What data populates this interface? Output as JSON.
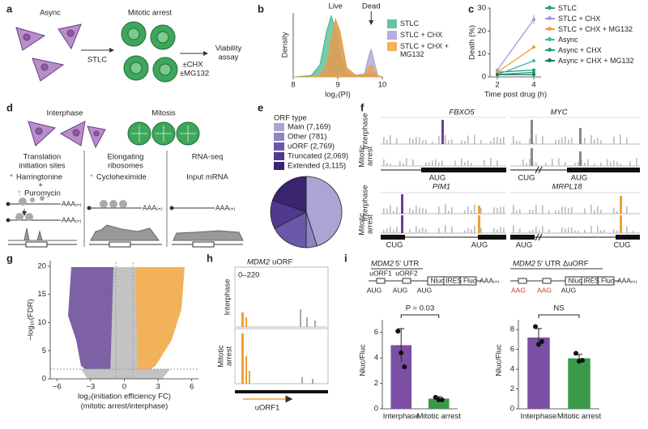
{
  "panel_labels": [
    "a",
    "b",
    "c",
    "d",
    "e",
    "f",
    "g",
    "h",
    "i"
  ],
  "panel_a": {
    "async": "Async",
    "drug": "STLC",
    "arrest": "Mitotic arrest",
    "treatments": [
      "±CHX",
      "±MG132"
    ],
    "assay": [
      "Viability",
      "assay"
    ]
  },
  "panel_d": {
    "interphase": "Interphase",
    "mitosis": "Mitosis",
    "columns": [
      [
        "Translation",
        "initiation sites"
      ],
      [
        "Elongating",
        "ribosomes"
      ],
      [
        "RNA-seq"
      ]
    ],
    "treatments": [
      "Harringtonine",
      "+",
      "Puromycin",
      "Cycloheximide",
      "Input mRNA"
    ],
    "markers": [
      "*",
      "†",
      "*"
    ],
    "polya": "AAA₍ₙ₎"
  },
  "panel_f": {
    "genes": [
      "FBXO5",
      "MYC",
      "PIM1",
      "MRPL18"
    ],
    "rows": [
      "Interphase",
      [
        "Mitotic",
        "arrest"
      ]
    ],
    "codons": [
      "AUG",
      "CUG"
    ]
  },
  "panel_h": {
    "gene": "MDM2",
    "feature": "uORF",
    "range": "0–220",
    "rows": [
      "Interphase",
      [
        "Mitotic",
        "arrest"
      ]
    ],
    "orf": "uORF1"
  },
  "panel_i": {
    "constructs": [
      {
        "gene": "MDM2",
        "title": "5′ UTR",
        "orfs": [
          "uORF1",
          "uORF2"
        ],
        "codons": [
          "AUG",
          "AUG",
          "AUG"
        ],
        "elements": [
          "Nluc",
          "IRES",
          "Fluc"
        ],
        "polya": "AAA₍ₙ₎"
      },
      {
        "gene": "MDM2",
        "title": "5′ UTR ΔuORF",
        "codons": [
          "AAG",
          "AAG",
          "AUG"
        ],
        "elements": [
          "Nluc",
          "IRES",
          "Fluc"
        ],
        "polya": "AAA₍ₙ₎"
      }
    ]
  },
  "chart_data": [
    {
      "type": "density",
      "xlabel": "log₂(PI)",
      "ylabel": "Density",
      "annotations": [
        "Live",
        "Dead"
      ],
      "x": [
        8.0,
        8.4,
        8.6,
        8.75,
        8.85,
        8.95,
        9.05,
        9.2,
        9.4,
        9.6,
        9.7,
        9.75,
        9.8,
        9.9,
        10.0
      ],
      "series": [
        {
          "name": "STLC",
          "color": "#3fb58a",
          "values": [
            0,
            0.02,
            0.2,
            0.75,
            1.0,
            0.8,
            0.35,
            0.05,
            0.01,
            0.02,
            0.05,
            0.05,
            0.03,
            0,
            0
          ]
        },
        {
          "name": "STLC + CHX",
          "color": "#a39ad6",
          "values": [
            0,
            0,
            0.02,
            0.15,
            0.5,
            0.9,
            0.7,
            0.15,
            0.03,
            0.05,
            0.35,
            0.45,
            0.3,
            0.02,
            0
          ]
        },
        {
          "name": "STLC + CHX + MG132",
          "color": "#f0a030",
          "values": [
            0,
            0,
            0.03,
            0.2,
            0.6,
            0.95,
            0.75,
            0.15,
            0.02,
            0.03,
            0.15,
            0.2,
            0.12,
            0.01,
            0
          ]
        }
      ],
      "xlim": [
        8,
        10
      ],
      "ylim": [
        0,
        1.05
      ],
      "xticks": [
        8,
        9,
        10
      ]
    },
    {
      "type": "line",
      "xlabel": "Time post drug (h)",
      "ylabel": "Death (%)",
      "x": [
        2,
        4
      ],
      "series": [
        {
          "name": "STLC",
          "color": "#2a9a7a",
          "values": [
            2,
            3
          ]
        },
        {
          "name": "STLC + CHX",
          "color": "#a39ad6",
          "values": [
            3,
            25
          ],
          "errors": [
            0.5,
            2
          ]
        },
        {
          "name": "STLC + CHX + MG132",
          "color": "#f0a030",
          "values": [
            2,
            13
          ]
        },
        {
          "name": "Async",
          "color": "#39b8a8",
          "values": [
            1,
            7
          ]
        },
        {
          "name": "Async + CHX",
          "color": "#23a07a",
          "values": [
            1,
            2
          ]
        },
        {
          "name": "Async + CHX + MG132",
          "color": "#1a7868",
          "values": [
            1,
            1
          ]
        }
      ],
      "xlim": [
        1.6,
        4.4
      ],
      "ylim": [
        0,
        30
      ],
      "xticks": [
        2,
        4
      ],
      "yticks": [
        0,
        10,
        20,
        30
      ]
    },
    {
      "type": "pie",
      "title": "ORF type",
      "labels": [
        "Main (7,169)",
        "Other (781)",
        "uORF (2,769)",
        "Truncated (2,069)",
        "Extended (3,115)"
      ],
      "values": [
        7169,
        781,
        2769,
        2069,
        3115
      ],
      "colors": [
        "#aba5d3",
        "#8e86c2",
        "#6a58a8",
        "#4f3a8f",
        "#3a2470"
      ]
    },
    {
      "type": "volcano",
      "xlabel": [
        "log₂(initiation efficiency FC)",
        "(mitotic arrest/interphase)"
      ],
      "ylabel": "−log₁₀(FDR)",
      "xlim": [
        -6.6,
        6.6
      ],
      "ylim": [
        0,
        21
      ],
      "xticks": [
        {
          "value": -6,
          "label": "−6"
        },
        {
          "value": -3,
          "label": "−3"
        },
        0,
        3,
        6
      ],
      "yticks": [
        0,
        5,
        10,
        15,
        20
      ]
    },
    {
      "type": "bar",
      "ylabel": "Nluc/Fluc",
      "categories": [
        "Interphase",
        "Mitotic arrest"
      ],
      "values": [
        5.0,
        0.8
      ],
      "errors": [
        1.3,
        0.15
      ],
      "points": [
        [
          6.1,
          4.4,
          3.3
        ],
        [
          0.9,
          0.7,
          0.7
        ]
      ],
      "colors": [
        "#7b4fa3",
        "#3a9a4a"
      ],
      "ylim": [
        0,
        7
      ],
      "yticks": [
        0,
        2,
        4,
        6
      ],
      "annotation": "P = 0.03"
    },
    {
      "type": "bar",
      "ylabel": "Nluc/Fluc",
      "categories": [
        "Interphase",
        "Mitotic arrest"
      ],
      "values": [
        7.2,
        5.1
      ],
      "errors": [
        0.9,
        0.4
      ],
      "points": [
        [
          8.3,
          6.5,
          6.8
        ],
        [
          5.6,
          4.8,
          4.9
        ]
      ],
      "colors": [
        "#7b4fa3",
        "#3a9a4a"
      ],
      "ylim": [
        0,
        9
      ],
      "yticks": [
        0,
        2,
        4,
        6,
        8
      ],
      "annotation": "NS"
    }
  ]
}
